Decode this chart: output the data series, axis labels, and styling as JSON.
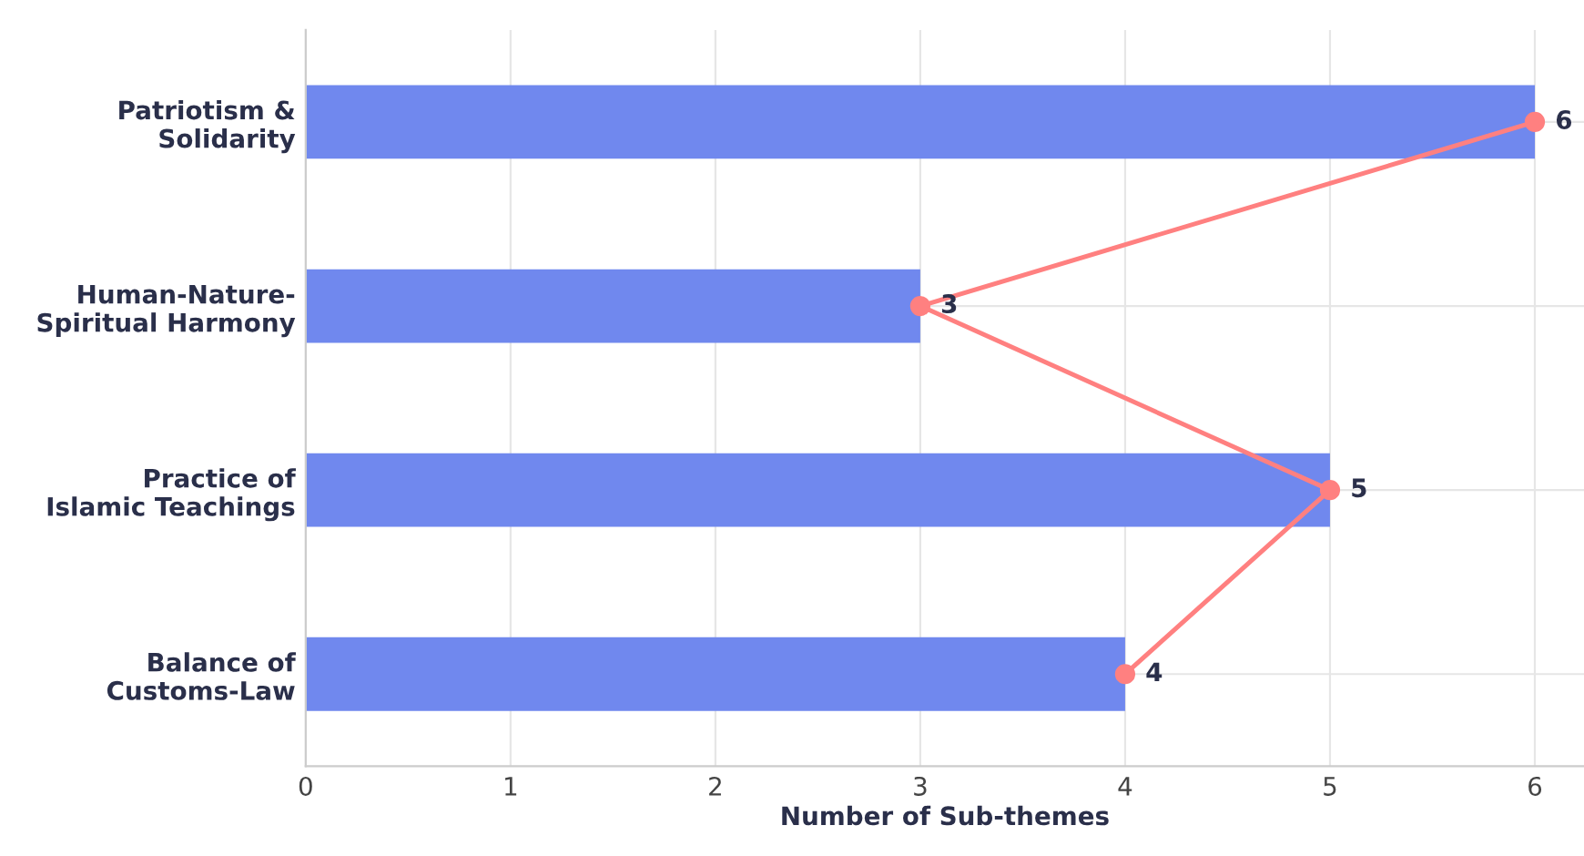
{
  "chart_data": {
    "type": "bar",
    "orientation": "horizontal",
    "xlabel": "Number of Sub-themes",
    "categories": [
      "Patriotism &\nSolidarity",
      "Human-Nature-\nSpiritual Harmony",
      "Practice of\nIslamic Teachings",
      "Balance of\nCustoms-Law"
    ],
    "series": [
      {
        "color": "#7088ee",
        "values": [
          6,
          3,
          5,
          4
        ]
      },
      {
        "type": "line",
        "color": "#ff8080",
        "values": [
          6,
          3,
          5,
          4
        ],
        "marker": "circle",
        "value_labels": [
          "6",
          "3",
          "5",
          "4"
        ]
      }
    ],
    "xlim": [
      0,
      6.24
    ],
    "xticks": [
      0,
      1,
      2,
      3,
      4,
      5,
      6
    ],
    "grid": true
  }
}
